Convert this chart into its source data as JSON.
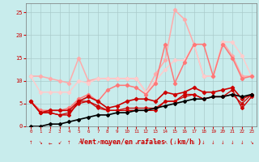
{
  "x": [
    0,
    1,
    2,
    3,
    4,
    5,
    6,
    7,
    8,
    9,
    10,
    11,
    12,
    13,
    14,
    15,
    16,
    17,
    18,
    19,
    20,
    21,
    22,
    23
  ],
  "series": [
    {
      "y": [
        0,
        0,
        0.5,
        0.5,
        1.0,
        1.5,
        2.0,
        2.5,
        2.5,
        3.0,
        3.0,
        3.5,
        3.5,
        4.0,
        4.5,
        5.0,
        5.5,
        6.0,
        6.0,
        6.5,
        6.5,
        7.0,
        6.5,
        7.0
      ],
      "color": "#000000",
      "lw": 1.2,
      "marker": "D",
      "ms": 2.0,
      "zorder": 5
    },
    {
      "y": [
        5.5,
        3.0,
        3.0,
        2.5,
        2.5,
        5.5,
        5.5,
        4.5,
        3.5,
        3.5,
        3.5,
        3.5,
        3.5,
        3.5,
        5.5,
        5.5,
        7.0,
        7.0,
        6.0,
        6.5,
        6.5,
        8.0,
        4.0,
        6.5
      ],
      "color": "#cc0000",
      "lw": 1.0,
      "marker": "D",
      "ms": 2.0,
      "zorder": 4
    },
    {
      "y": [
        5.5,
        3.0,
        3.0,
        2.5,
        3.0,
        5.0,
        5.5,
        4.0,
        3.5,
        3.5,
        4.0,
        4.0,
        4.0,
        4.0,
        5.5,
        5.5,
        6.5,
        7.0,
        6.0,
        6.5,
        6.5,
        7.0,
        5.0,
        7.0
      ],
      "color": "#cc0000",
      "lw": 0.9,
      "marker": "D",
      "ms": 1.8,
      "zorder": 4
    },
    {
      "y": [
        5.5,
        3.0,
        3.5,
        3.5,
        3.5,
        5.5,
        6.5,
        5.5,
        4.0,
        4.5,
        5.5,
        6.0,
        6.0,
        5.5,
        7.5,
        7.0,
        7.5,
        8.5,
        7.5,
        7.5,
        8.0,
        8.5,
        6.0,
        7.0
      ],
      "color": "#cc0000",
      "lw": 1.2,
      "marker": "D",
      "ms": 2.2,
      "zorder": 4
    },
    {
      "y": [
        5.5,
        3.5,
        3.5,
        3.5,
        4.0,
        6.0,
        7.0,
        5.5,
        8.0,
        9.0,
        9.0,
        8.5,
        7.0,
        9.5,
        18.0,
        9.5,
        14.0,
        18.0,
        18.0,
        11.0,
        18.0,
        15.0,
        10.5,
        11.0
      ],
      "color": "#ff7777",
      "lw": 1.1,
      "marker": "D",
      "ms": 2.2,
      "zorder": 3
    },
    {
      "y": [
        11.0,
        11.0,
        10.5,
        10.0,
        9.5,
        15.0,
        10.0,
        10.5,
        10.5,
        10.5,
        10.5,
        10.5,
        7.5,
        11.5,
        14.5,
        25.5,
        23.5,
        18.0,
        11.0,
        11.0,
        18.5,
        15.5,
        11.0,
        11.0
      ],
      "color": "#ffaaaa",
      "lw": 1.1,
      "marker": "D",
      "ms": 2.2,
      "zorder": 2
    },
    {
      "y": [
        11.0,
        7.5,
        7.5,
        7.5,
        7.5,
        10.0,
        9.5,
        10.5,
        10.5,
        10.5,
        10.5,
        10.5,
        7.5,
        10.0,
        12.5,
        14.5,
        14.5,
        18.0,
        11.0,
        11.0,
        18.5,
        18.5,
        15.5,
        11.0
      ],
      "color": "#ffcccc",
      "lw": 1.1,
      "marker": "D",
      "ms": 2.2,
      "zorder": 2
    }
  ],
  "arrow_chars": [
    "↑",
    "↘",
    "←",
    "↙",
    "↑",
    "↗",
    "↗",
    "↗",
    "→",
    "↙",
    "←",
    "↙",
    "↙",
    "↖",
    "↖",
    "↓",
    "↓",
    "↓",
    "↓",
    "↓",
    "↓",
    "↓",
    "↓",
    "↘"
  ],
  "xlim": [
    -0.5,
    23.5
  ],
  "ylim": [
    0,
    27
  ],
  "yticks": [
    0,
    5,
    10,
    15,
    20,
    25
  ],
  "xticks": [
    0,
    1,
    2,
    3,
    4,
    5,
    6,
    7,
    8,
    9,
    10,
    11,
    12,
    13,
    14,
    15,
    16,
    17,
    18,
    19,
    20,
    21,
    22,
    23
  ],
  "xlabel": "Vent moyen/en rafales ( km/h )",
  "bg_color": "#c8ecec",
  "grid_color": "#aacccc",
  "tick_color": "#cc0000",
  "label_color": "#cc0000"
}
